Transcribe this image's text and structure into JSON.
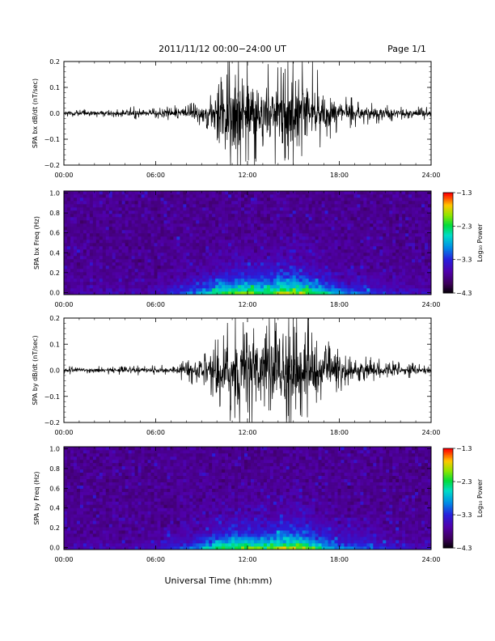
{
  "header": {
    "title": "2011/11/12   00:00−24:00 UT",
    "page_label": "Page 1/1"
  },
  "footer": {
    "xlabel": "Universal Time (hh:mm)"
  },
  "chart_data": [
    {
      "type": "line",
      "ylabel": "SPA bx dB/dt (nT/sec)",
      "xlim": [
        0,
        24
      ],
      "ylim": [
        -0.2,
        0.2
      ],
      "x_tick_labels": [
        "00:00",
        "06:00",
        "12:00",
        "18:00",
        "24:00"
      ],
      "y_tick_labels": [
        "0.2",
        "0.1",
        "0.0",
        "−0.1",
        "−0.2"
      ],
      "envelope": {
        "x_hours": [
          0,
          2,
          4,
          4.2,
          5,
          6,
          8,
          9.5,
          10,
          10.5,
          11,
          12,
          13,
          14,
          15,
          16,
          16.5,
          17,
          18,
          19,
          21,
          24
        ],
        "amplitude": [
          0.012,
          0.014,
          0.012,
          0.03,
          0.014,
          0.016,
          0.03,
          0.05,
          0.09,
          0.16,
          0.2,
          0.19,
          0.14,
          0.2,
          0.2,
          0.2,
          0.14,
          0.09,
          0.06,
          0.045,
          0.03,
          0.02
        ]
      },
      "series": [
        {
          "values_note": ""
        }
      ]
    },
    {
      "type": "heatmap",
      "ylabel": "SPA bx Freq (Hz)",
      "xlim": [
        0,
        24
      ],
      "ylim": [
        0.0,
        1.0
      ],
      "x_tick_labels": [
        "00:00",
        "06:00",
        "12:00",
        "18:00",
        "24:00"
      ],
      "y_tick_labels": [
        "1.0",
        "0.8",
        "0.6",
        "0.4",
        "0.2",
        "0.0"
      ],
      "colorbar": {
        "label": "Log₁₀ Power",
        "tick_labels": [
          "−1.3",
          "−2.3",
          "−3.3",
          "−4.3"
        ],
        "range": [
          -4.3,
          -1.3
        ]
      }
    },
    {
      "type": "line",
      "ylabel": "SPA by dB/dt (nT/sec)",
      "xlim": [
        0,
        24
      ],
      "ylim": [
        -0.2,
        0.2
      ],
      "x_tick_labels": [
        "00:00",
        "06:00",
        "12:00",
        "18:00",
        "24:00"
      ],
      "y_tick_labels": [
        "0.2",
        "0.1",
        "0.0",
        "−0.1",
        "−0.2"
      ],
      "envelope": {
        "x_hours": [
          0,
          2,
          3.5,
          4,
          6,
          7,
          8,
          9.5,
          10,
          11,
          12,
          13,
          14,
          15,
          16,
          16.5,
          17,
          18,
          19,
          21,
          24
        ],
        "amplitude": [
          0.012,
          0.014,
          0.012,
          0.02,
          0.014,
          0.02,
          0.035,
          0.07,
          0.1,
          0.16,
          0.2,
          0.17,
          0.2,
          0.2,
          0.2,
          0.14,
          0.1,
          0.07,
          0.05,
          0.03,
          0.02
        ]
      }
    },
    {
      "type": "heatmap",
      "ylabel": "SPA by Freq (Hz)",
      "xlim": [
        0,
        24
      ],
      "ylim": [
        0.0,
        1.0
      ],
      "x_tick_labels": [
        "00:00",
        "06:00",
        "12:00",
        "18:00",
        "24:00"
      ],
      "y_tick_labels": [
        "1.0",
        "0.8",
        "0.6",
        "0.4",
        "0.2",
        "0.0"
      ],
      "colorbar": {
        "label": "Log₁₀ Power",
        "tick_labels": [
          "−1.3",
          "−2.3",
          "−3.3",
          "−4.3"
        ],
        "range": [
          -4.3,
          -1.3
        ]
      }
    }
  ]
}
